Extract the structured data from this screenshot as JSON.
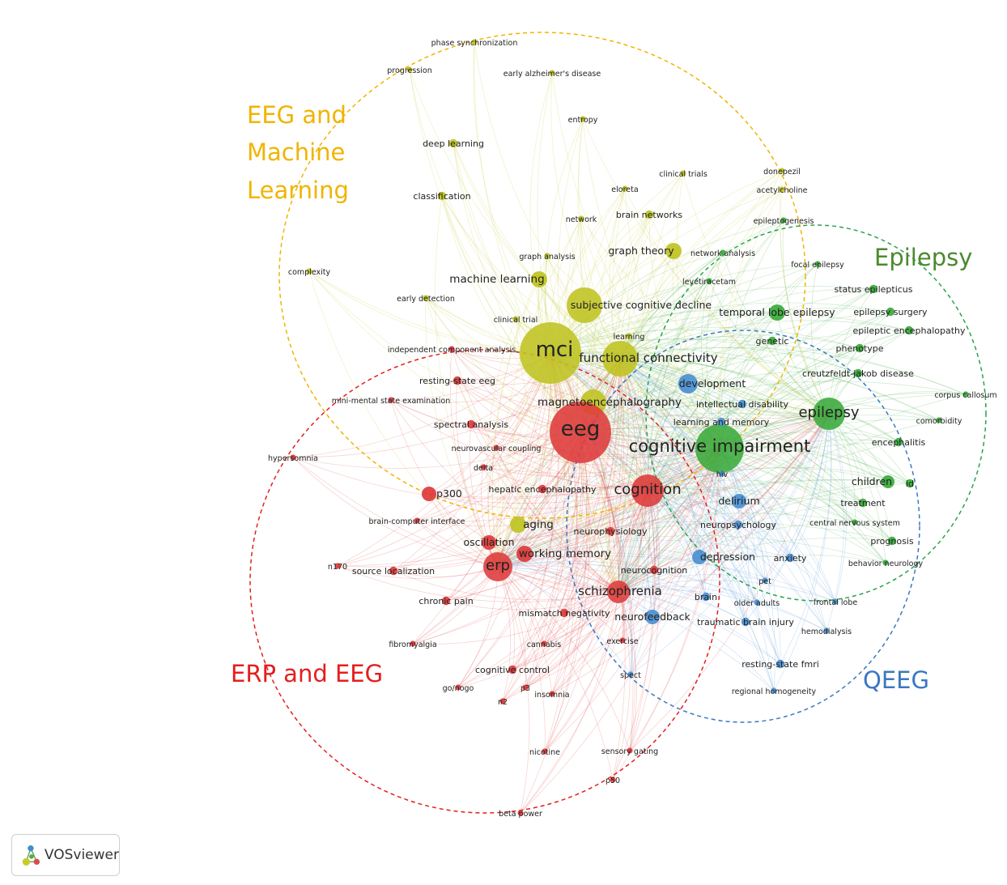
{
  "colors": {
    "yellow": "#bfc320",
    "red": "#de3a3a",
    "green": "#3aaa3a",
    "blue": "#4b8fd0",
    "yellow_title": "#f0b400",
    "red_title": "#e41e1e",
    "green_title": "#4b8a2e",
    "blue_title": "#3a78c0"
  },
  "clusters": [
    {
      "name": "EEG and Machine Learning",
      "color": "yellow",
      "title_lines": [
        "EEG and",
        "Machine",
        "Learning"
      ]
    },
    {
      "name": "ERP and EEG",
      "color": "red",
      "title_lines": [
        "ERP and EEG"
      ]
    },
    {
      "name": "Epilepsy",
      "color": "green",
      "title_lines": [
        "Epilepsy"
      ]
    },
    {
      "name": "QEEG",
      "color": "blue",
      "title_lines": [
        "QEEG"
      ]
    }
  ],
  "nodes": [
    {
      "label": "phase synchronization",
      "cluster": "yellow",
      "weight": 1
    },
    {
      "label": "progression",
      "cluster": "yellow",
      "weight": 1
    },
    {
      "label": "early alzheimer's disease",
      "cluster": "yellow",
      "weight": 1
    },
    {
      "label": "entropy",
      "cluster": "yellow",
      "weight": 1
    },
    {
      "label": "deep learning",
      "cluster": "yellow",
      "weight": 2
    },
    {
      "label": "clinical trials",
      "cluster": "yellow",
      "weight": 1
    },
    {
      "label": "donepezil",
      "cluster": "yellow",
      "weight": 1
    },
    {
      "label": "classification",
      "cluster": "yellow",
      "weight": 2
    },
    {
      "label": "eloreta",
      "cluster": "yellow",
      "weight": 1
    },
    {
      "label": "acetylcholine",
      "cluster": "yellow",
      "weight": 1
    },
    {
      "label": "network",
      "cluster": "yellow",
      "weight": 1
    },
    {
      "label": "brain networks",
      "cluster": "yellow",
      "weight": 2
    },
    {
      "label": "complexity",
      "cluster": "yellow",
      "weight": 1
    },
    {
      "label": "graph analysis",
      "cluster": "yellow",
      "weight": 1
    },
    {
      "label": "graph theory",
      "cluster": "yellow",
      "weight": 3
    },
    {
      "label": "machine learning",
      "cluster": "yellow",
      "weight": 4
    },
    {
      "label": "early detection",
      "cluster": "yellow",
      "weight": 1
    },
    {
      "label": "subjective cognitive decline",
      "cluster": "yellow",
      "weight": 3
    },
    {
      "label": "clinical trial",
      "cluster": "yellow",
      "weight": 1
    },
    {
      "label": "learning",
      "cluster": "yellow",
      "weight": 1
    },
    {
      "label": "mci",
      "cluster": "yellow",
      "weight": 9
    },
    {
      "label": "functional connectivity",
      "cluster": "yellow",
      "weight": 5
    },
    {
      "label": "magnetoencephalography",
      "cluster": "yellow",
      "weight": 4
    },
    {
      "label": "aging",
      "cluster": "yellow",
      "weight": 4
    },
    {
      "label": "independent component analysis",
      "cluster": "red",
      "weight": 1
    },
    {
      "label": "resting-state eeg",
      "cluster": "red",
      "weight": 2
    },
    {
      "label": "mini-mental state examination",
      "cluster": "red",
      "weight": 1
    },
    {
      "label": "spectral analysis",
      "cluster": "red",
      "weight": 2
    },
    {
      "label": "eeg",
      "cluster": "red",
      "weight": 10
    },
    {
      "label": "neurovascular coupling",
      "cluster": "red",
      "weight": 1
    },
    {
      "label": "hypersomnia",
      "cluster": "red",
      "weight": 1
    },
    {
      "label": "delta",
      "cluster": "red",
      "weight": 1
    },
    {
      "label": "p300",
      "cluster": "red",
      "weight": 3
    },
    {
      "label": "hepatic encephalopathy",
      "cluster": "red",
      "weight": 2
    },
    {
      "label": "cognition",
      "cluster": "red",
      "weight": 6
    },
    {
      "label": "brain-computer interface",
      "cluster": "red",
      "weight": 1
    },
    {
      "label": "oscillation",
      "cluster": "red",
      "weight": 3
    },
    {
      "label": "neurophysiology",
      "cluster": "red",
      "weight": 2
    },
    {
      "label": "working memory",
      "cluster": "red",
      "weight": 4
    },
    {
      "label": "n170",
      "cluster": "red",
      "weight": 1
    },
    {
      "label": "source localization",
      "cluster": "red",
      "weight": 2
    },
    {
      "label": "erp",
      "cluster": "red",
      "weight": 6
    },
    {
      "label": "neurocognition",
      "cluster": "red",
      "weight": 2
    },
    {
      "label": "chronic pain",
      "cluster": "red",
      "weight": 2
    },
    {
      "label": "schizophrenia",
      "cluster": "red",
      "weight": 5
    },
    {
      "label": "mismatch negativity",
      "cluster": "red",
      "weight": 2
    },
    {
      "label": "fibromyalgia",
      "cluster": "red",
      "weight": 1
    },
    {
      "label": "cannabis",
      "cluster": "red",
      "weight": 1
    },
    {
      "label": "exercise",
      "cluster": "red",
      "weight": 1
    },
    {
      "label": "cognitive control",
      "cluster": "red",
      "weight": 2
    },
    {
      "label": "go/nogo",
      "cluster": "red",
      "weight": 1
    },
    {
      "label": "p3",
      "cluster": "red",
      "weight": 1
    },
    {
      "label": "n2",
      "cluster": "red",
      "weight": 1
    },
    {
      "label": "insomnia",
      "cluster": "red",
      "weight": 1
    },
    {
      "label": "nicotine",
      "cluster": "red",
      "weight": 1
    },
    {
      "label": "sensory gating",
      "cluster": "red",
      "weight": 1
    },
    {
      "label": "p50",
      "cluster": "red",
      "weight": 1
    },
    {
      "label": "beta power",
      "cluster": "red",
      "weight": 1
    },
    {
      "label": "network analysis",
      "cluster": "green",
      "weight": 1
    },
    {
      "label": "epileptogenesis",
      "cluster": "green",
      "weight": 1
    },
    {
      "label": "focal epilepsy",
      "cluster": "green",
      "weight": 1
    },
    {
      "label": "levetiracetam",
      "cluster": "green",
      "weight": 1
    },
    {
      "label": "status epilepticus",
      "cluster": "green",
      "weight": 2
    },
    {
      "label": "temporal lobe epilepsy",
      "cluster": "green",
      "weight": 3
    },
    {
      "label": "epilepsy surgery",
      "cluster": "green",
      "weight": 2
    },
    {
      "label": "epileptic encephalopathy",
      "cluster": "green",
      "weight": 2
    },
    {
      "label": "genetic",
      "cluster": "green",
      "weight": 2
    },
    {
      "label": "phenotype",
      "cluster": "green",
      "weight": 2
    },
    {
      "label": "creutzfeldt-jakob disease",
      "cluster": "green",
      "weight": 2
    },
    {
      "label": "corpus callosum",
      "cluster": "green",
      "weight": 1
    },
    {
      "label": "epilepsy",
      "cluster": "green",
      "weight": 6
    },
    {
      "label": "comorbidity",
      "cluster": "green",
      "weight": 1
    },
    {
      "label": "encephalitis",
      "cluster": "green",
      "weight": 2
    },
    {
      "label": "cognitive impairment",
      "cluster": "green",
      "weight": 8
    },
    {
      "label": "children",
      "cluster": "green",
      "weight": 3
    },
    {
      "label": "id",
      "cluster": "green",
      "weight": 2
    },
    {
      "label": "treatment",
      "cluster": "green",
      "weight": 2
    },
    {
      "label": "central nervous system",
      "cluster": "green",
      "weight": 1
    },
    {
      "label": "prognosis",
      "cluster": "green",
      "weight": 2
    },
    {
      "label": "behavior neurology",
      "cluster": "green",
      "weight": 1
    },
    {
      "label": "development",
      "cluster": "blue",
      "weight": 3
    },
    {
      "label": "intellectual disability",
      "cluster": "blue",
      "weight": 2
    },
    {
      "label": "learning and memory",
      "cluster": "blue",
      "weight": 2
    },
    {
      "label": "hiv",
      "cluster": "blue",
      "weight": 1
    },
    {
      "label": "delirium",
      "cluster": "blue",
      "weight": 3
    },
    {
      "label": "neuropsychology",
      "cluster": "blue",
      "weight": 2
    },
    {
      "label": "depression",
      "cluster": "blue",
      "weight": 3
    },
    {
      "label": "anxiety",
      "cluster": "blue",
      "weight": 2
    },
    {
      "label": "pet",
      "cluster": "blue",
      "weight": 1
    },
    {
      "label": "brain",
      "cluster": "blue",
      "weight": 2
    },
    {
      "label": "older adults",
      "cluster": "blue",
      "weight": 1
    },
    {
      "label": "frontal lobe",
      "cluster": "blue",
      "weight": 1
    },
    {
      "label": "neurofeedback",
      "cluster": "blue",
      "weight": 3
    },
    {
      "label": "traumatic brain injury",
      "cluster": "blue",
      "weight": 2
    },
    {
      "label": "hemodialysis",
      "cluster": "blue",
      "weight": 1
    },
    {
      "label": "resting-state fmri",
      "cluster": "blue",
      "weight": 2
    },
    {
      "label": "spect",
      "cluster": "blue",
      "weight": 1
    },
    {
      "label": "regional homogeneity",
      "cluster": "blue",
      "weight": 1
    }
  ],
  "badge": {
    "text": "VOSviewer",
    "logo_icon": "vosviewer-logo-icon"
  }
}
